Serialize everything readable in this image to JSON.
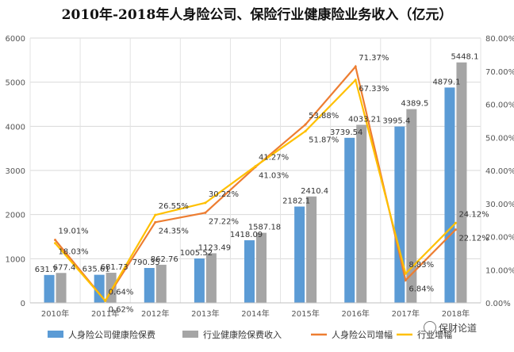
{
  "chart_data": {
    "type": "bar+line",
    "title": "2010年-2018年人身险公司、保险行业健康险业务收入（亿元）",
    "categories": [
      "2010年",
      "2011年",
      "2012年",
      "2013年",
      "2014年",
      "2015年",
      "2016年",
      "2017年",
      "2018年"
    ],
    "series": [
      {
        "name": "人身险公司健康险保费",
        "type": "bar",
        "axis": "left",
        "color": "#5B9BD5",
        "values": [
          631.7,
          635.61,
          790.35,
          1005.52,
          1418.09,
          2182.1,
          3739.54,
          3995.4,
          4879.1
        ],
        "labels": [
          "631.7",
          "635.61",
          "790.35",
          "1005.52",
          "1418.09",
          "2182.1",
          "3739.54",
          "3995.4",
          "4879.1"
        ]
      },
      {
        "name": "行业健康险保费收入",
        "type": "bar",
        "axis": "left",
        "color": "#A5A5A5",
        "values": [
          677.4,
          681.73,
          862.76,
          1123.49,
          1587.18,
          2410.4,
          4033.21,
          4389.5,
          5448.1
        ],
        "labels": [
          "677.4",
          "681.73",
          "862.76",
          "1123.49",
          "1587.18",
          "2410.4",
          "4033.21",
          "4389.5",
          "5448.1"
        ]
      },
      {
        "name": "人身险公司增幅",
        "type": "line",
        "axis": "right",
        "color": "#ED7D31",
        "values": [
          19.01,
          0.62,
          24.35,
          27.22,
          41.03,
          53.88,
          71.37,
          6.84,
          22.12
        ],
        "labels": [
          "19.01%",
          "0.62%",
          "24.35%",
          "27.22%",
          "41.03%",
          "53.88%",
          "71.37%",
          "6.84%",
          "22.12%"
        ]
      },
      {
        "name": "行业增幅",
        "type": "line",
        "axis": "right",
        "color": "#FFC000",
        "values": [
          18.03,
          0.64,
          26.55,
          30.22,
          41.27,
          51.87,
          67.33,
          8.83,
          24.12
        ],
        "labels": [
          "18.03%",
          "0.64%",
          "26.55%",
          "30.22%",
          "41.27%",
          "51.87%",
          "67.33%",
          "8.83%",
          "24.12%"
        ]
      }
    ],
    "left_axis": {
      "min": 0,
      "max": 6000,
      "ticks": [
        "0",
        "1000",
        "2000",
        "3000",
        "4000",
        "5000",
        "6000"
      ]
    },
    "right_axis": {
      "min": 0,
      "max": 80,
      "ticks": [
        "0.00%",
        "10.00%",
        "20.00%",
        "30.00%",
        "40.00%",
        "50.00%",
        "60.00%",
        "70.00%",
        "80.00%"
      ]
    },
    "grid": true,
    "legend_position": "bottom"
  },
  "watermark": "保财论道"
}
